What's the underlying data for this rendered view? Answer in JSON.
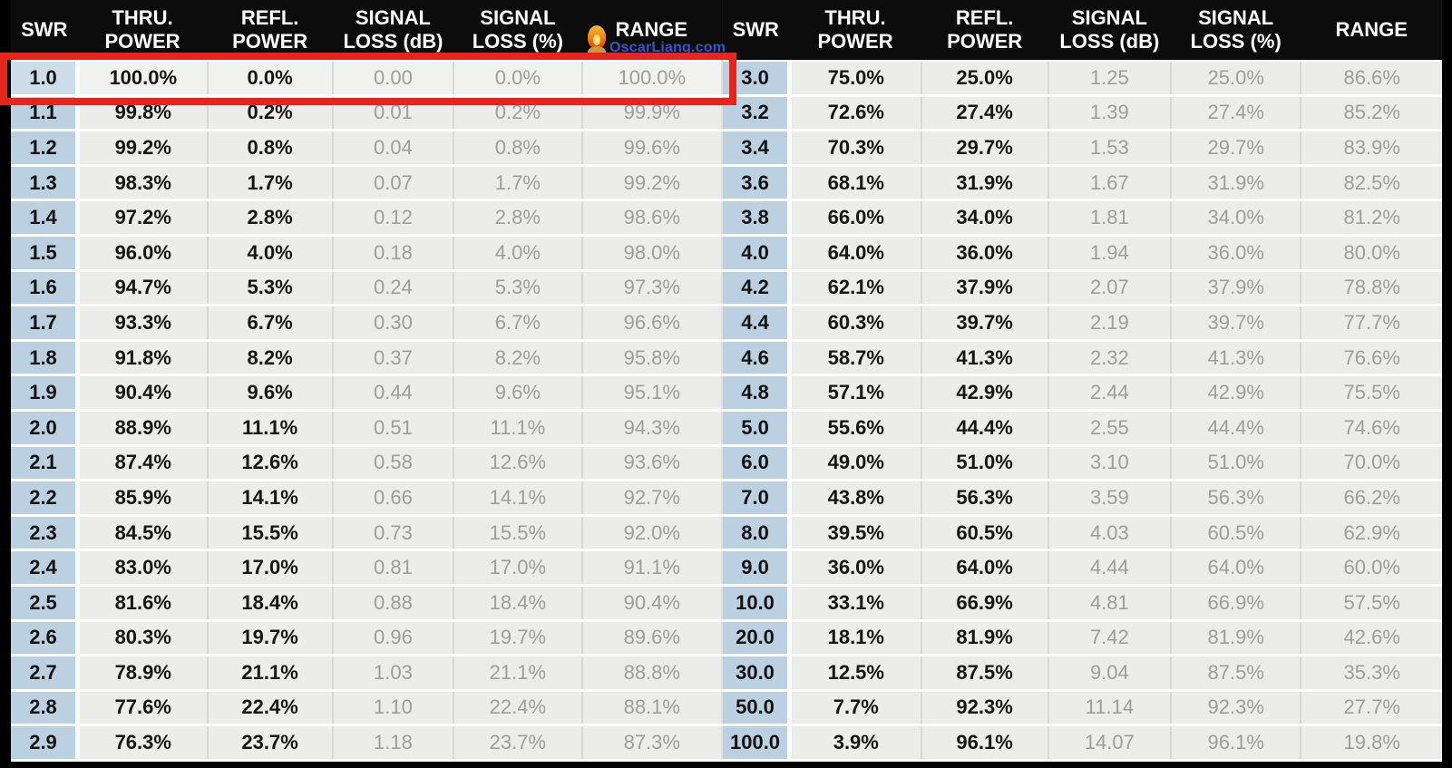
{
  "page": {
    "background_color": "#000000",
    "header_bg_color": "#0c0c0c",
    "swr_column_color": "#bbd0e1",
    "cell_color": "#ececea",
    "bold_text_color": "#161616",
    "gray_text_color": "#9d9d9d",
    "highlight_color": "#e6251c"
  },
  "logo": {
    "text": "OscarLiang.com",
    "icon": "flame-icon",
    "text_color": "#2f56c5"
  },
  "highlight": {
    "target": "left table row SWR 1.0",
    "row_values": [
      "1.0",
      "100.0%",
      "0.0%",
      "0.00",
      "0.0%",
      "100.0%"
    ]
  },
  "chart_data": [
    {
      "type": "table",
      "title": "SWR power loss table (SWR 1.0 - 2.9)",
      "columns": [
        "SWR",
        "THRU. POWER",
        "REFL. POWER",
        "SIGNAL LOSS (dB)",
        "SIGNAL LOSS (%)",
        "RANGE"
      ],
      "header_lines": [
        [
          "SWR"
        ],
        [
          "THRU.",
          "POWER"
        ],
        [
          "REFL.",
          "POWER"
        ],
        [
          "SIGNAL",
          "LOSS (dB)"
        ],
        [
          "SIGNAL",
          "LOSS (%)"
        ],
        [
          "RANGE"
        ]
      ],
      "highlighted_row": 0,
      "rows": [
        [
          "1.0",
          "100.0%",
          "0.0%",
          "0.00",
          "0.0%",
          "100.0%"
        ],
        [
          "1.1",
          "99.8%",
          "0.2%",
          "0.01",
          "0.2%",
          "99.9%"
        ],
        [
          "1.2",
          "99.2%",
          "0.8%",
          "0.04",
          "0.8%",
          "99.6%"
        ],
        [
          "1.3",
          "98.3%",
          "1.7%",
          "0.07",
          "1.7%",
          "99.2%"
        ],
        [
          "1.4",
          "97.2%",
          "2.8%",
          "0.12",
          "2.8%",
          "98.6%"
        ],
        [
          "1.5",
          "96.0%",
          "4.0%",
          "0.18",
          "4.0%",
          "98.0%"
        ],
        [
          "1.6",
          "94.7%",
          "5.3%",
          "0.24",
          "5.3%",
          "97.3%"
        ],
        [
          "1.7",
          "93.3%",
          "6.7%",
          "0.30",
          "6.7%",
          "96.6%"
        ],
        [
          "1.8",
          "91.8%",
          "8.2%",
          "0.37",
          "8.2%",
          "95.8%"
        ],
        [
          "1.9",
          "90.4%",
          "9.6%",
          "0.44",
          "9.6%",
          "95.1%"
        ],
        [
          "2.0",
          "88.9%",
          "11.1%",
          "0.51",
          "11.1%",
          "94.3%"
        ],
        [
          "2.1",
          "87.4%",
          "12.6%",
          "0.58",
          "12.6%",
          "93.6%"
        ],
        [
          "2.2",
          "85.9%",
          "14.1%",
          "0.66",
          "14.1%",
          "92.7%"
        ],
        [
          "2.3",
          "84.5%",
          "15.5%",
          "0.73",
          "15.5%",
          "92.0%"
        ],
        [
          "2.4",
          "83.0%",
          "17.0%",
          "0.81",
          "17.0%",
          "91.1%"
        ],
        [
          "2.5",
          "81.6%",
          "18.4%",
          "0.88",
          "18.4%",
          "90.4%"
        ],
        [
          "2.6",
          "80.3%",
          "19.7%",
          "0.96",
          "19.7%",
          "89.6%"
        ],
        [
          "2.7",
          "78.9%",
          "21.1%",
          "1.03",
          "21.1%",
          "88.8%"
        ],
        [
          "2.8",
          "77.6%",
          "22.4%",
          "1.10",
          "22.4%",
          "88.1%"
        ],
        [
          "2.9",
          "76.3%",
          "23.7%",
          "1.18",
          "23.7%",
          "87.3%"
        ]
      ]
    },
    {
      "type": "table",
      "title": "SWR power loss table (SWR 3.0 - 100.0)",
      "columns": [
        "SWR",
        "THRU. POWER",
        "REFL. POWER",
        "SIGNAL LOSS (dB)",
        "SIGNAL LOSS (%)",
        "RANGE"
      ],
      "header_lines": [
        [
          "SWR"
        ],
        [
          "THRU.",
          "POWER"
        ],
        [
          "REFL.",
          "POWER"
        ],
        [
          "SIGNAL",
          "LOSS (dB)"
        ],
        [
          "SIGNAL",
          "LOSS (%)"
        ],
        [
          "RANGE"
        ]
      ],
      "rows": [
        [
          "3.0",
          "75.0%",
          "25.0%",
          "1.25",
          "25.0%",
          "86.6%"
        ],
        [
          "3.2",
          "72.6%",
          "27.4%",
          "1.39",
          "27.4%",
          "85.2%"
        ],
        [
          "3.4",
          "70.3%",
          "29.7%",
          "1.53",
          "29.7%",
          "83.9%"
        ],
        [
          "3.6",
          "68.1%",
          "31.9%",
          "1.67",
          "31.9%",
          "82.5%"
        ],
        [
          "3.8",
          "66.0%",
          "34.0%",
          "1.81",
          "34.0%",
          "81.2%"
        ],
        [
          "4.0",
          "64.0%",
          "36.0%",
          "1.94",
          "36.0%",
          "80.0%"
        ],
        [
          "4.2",
          "62.1%",
          "37.9%",
          "2.07",
          "37.9%",
          "78.8%"
        ],
        [
          "4.4",
          "60.3%",
          "39.7%",
          "2.19",
          "39.7%",
          "77.7%"
        ],
        [
          "4.6",
          "58.7%",
          "41.3%",
          "2.32",
          "41.3%",
          "76.6%"
        ],
        [
          "4.8",
          "57.1%",
          "42.9%",
          "2.44",
          "42.9%",
          "75.5%"
        ],
        [
          "5.0",
          "55.6%",
          "44.4%",
          "2.55",
          "44.4%",
          "74.6%"
        ],
        [
          "6.0",
          "49.0%",
          "51.0%",
          "3.10",
          "51.0%",
          "70.0%"
        ],
        [
          "7.0",
          "43.8%",
          "56.3%",
          "3.59",
          "56.3%",
          "66.2%"
        ],
        [
          "8.0",
          "39.5%",
          "60.5%",
          "4.03",
          "60.5%",
          "62.9%"
        ],
        [
          "9.0",
          "36.0%",
          "64.0%",
          "4.44",
          "64.0%",
          "60.0%"
        ],
        [
          "10.0",
          "33.1%",
          "66.9%",
          "4.81",
          "66.9%",
          "57.5%"
        ],
        [
          "20.0",
          "18.1%",
          "81.9%",
          "7.42",
          "81.9%",
          "42.6%"
        ],
        [
          "30.0",
          "12.5%",
          "87.5%",
          "9.04",
          "87.5%",
          "35.3%"
        ],
        [
          "50.0",
          "7.7%",
          "92.3%",
          "11.14",
          "92.3%",
          "27.7%"
        ],
        [
          "100.0",
          "3.9%",
          "96.1%",
          "14.07",
          "96.1%",
          "19.8%"
        ]
      ]
    }
  ]
}
